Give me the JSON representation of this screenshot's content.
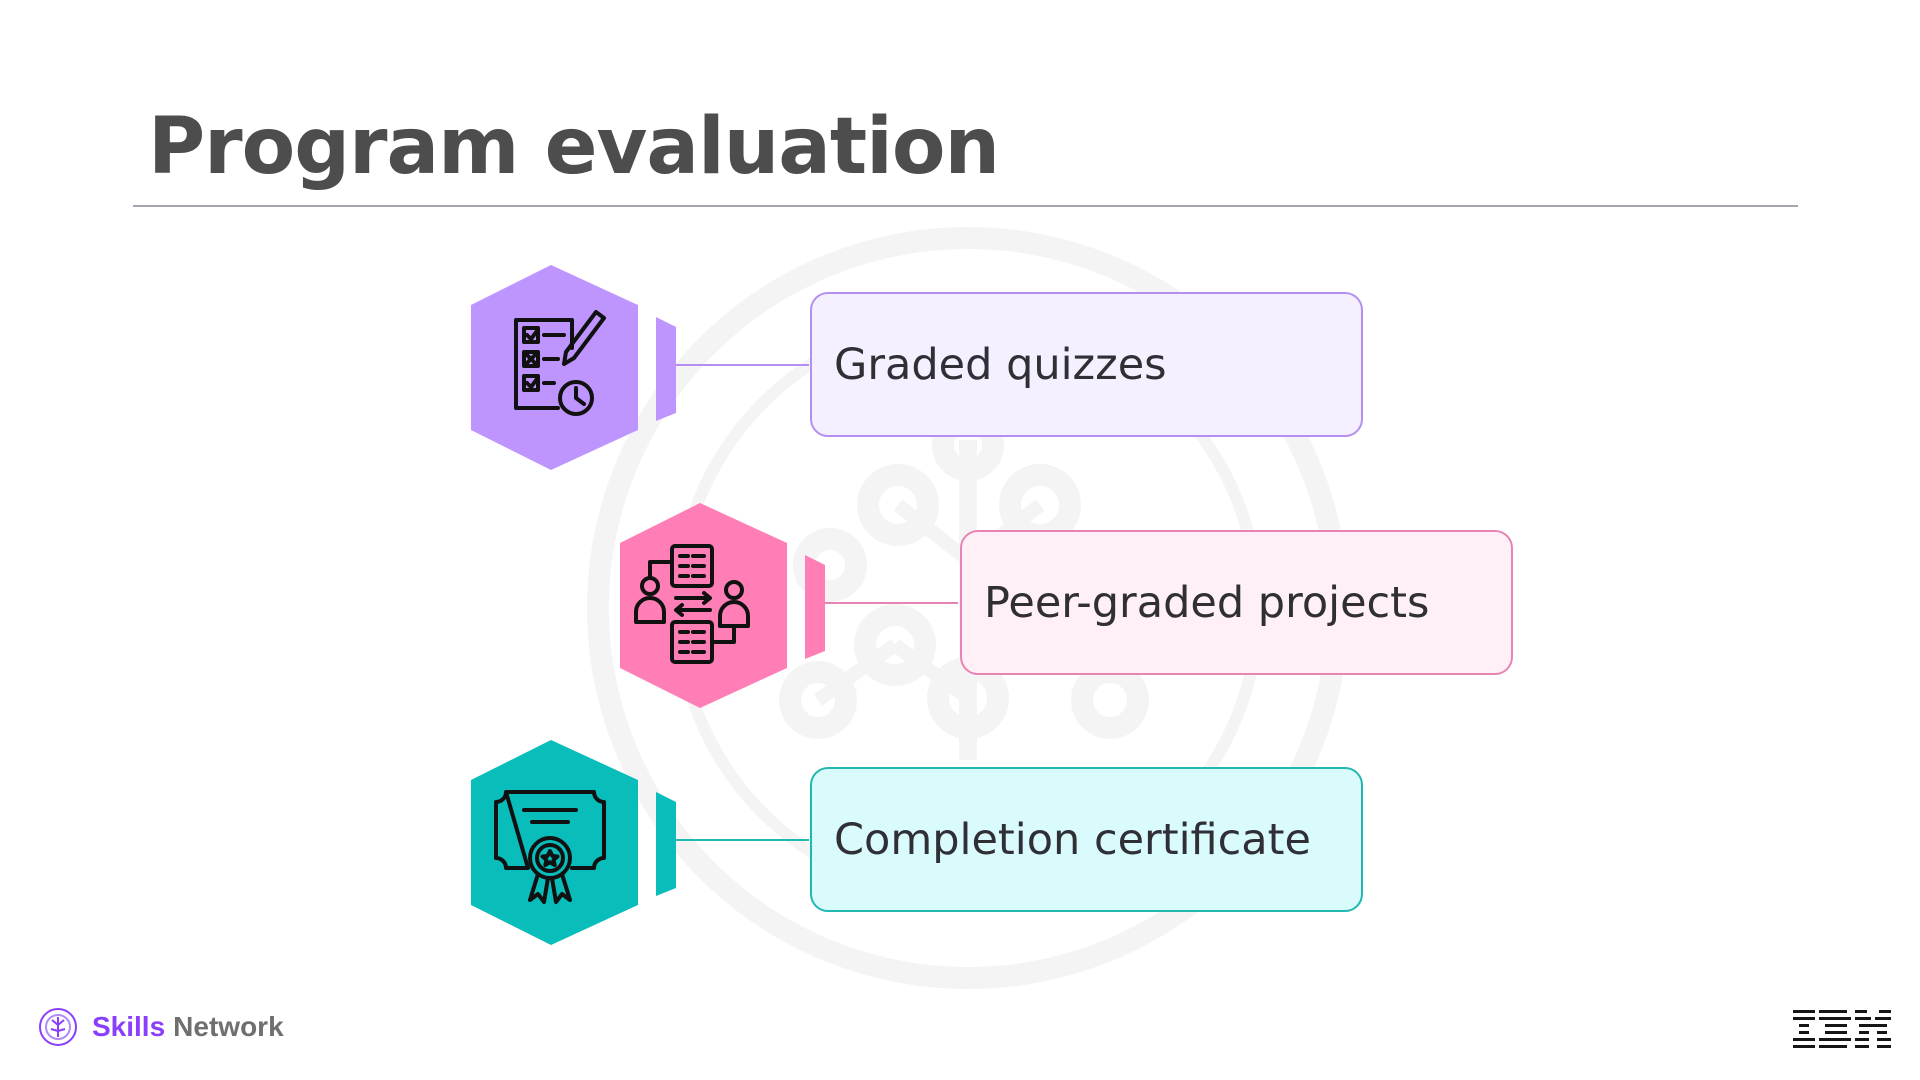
{
  "slide": {
    "title": "Program evaluation"
  },
  "items": [
    {
      "label": "Graded quizzes",
      "icon": "quiz-checklist-icon",
      "color": "#be95ff",
      "card_bg": "#f5f0ff",
      "card_border": "#b58ef2"
    },
    {
      "label": "Peer-graded projects",
      "icon": "peer-review-icon",
      "color": "#ff7eb6",
      "card_bg": "#fff0f7",
      "card_border": "#e784b4"
    },
    {
      "label": "Completion certificate",
      "icon": "certificate-icon",
      "color": "#08bdba",
      "card_bg": "#d9fbfb",
      "card_border": "#21b8b2"
    }
  ],
  "footer": {
    "brand_skills": "Skills",
    "brand_network": "Network",
    "company": "IBM"
  }
}
